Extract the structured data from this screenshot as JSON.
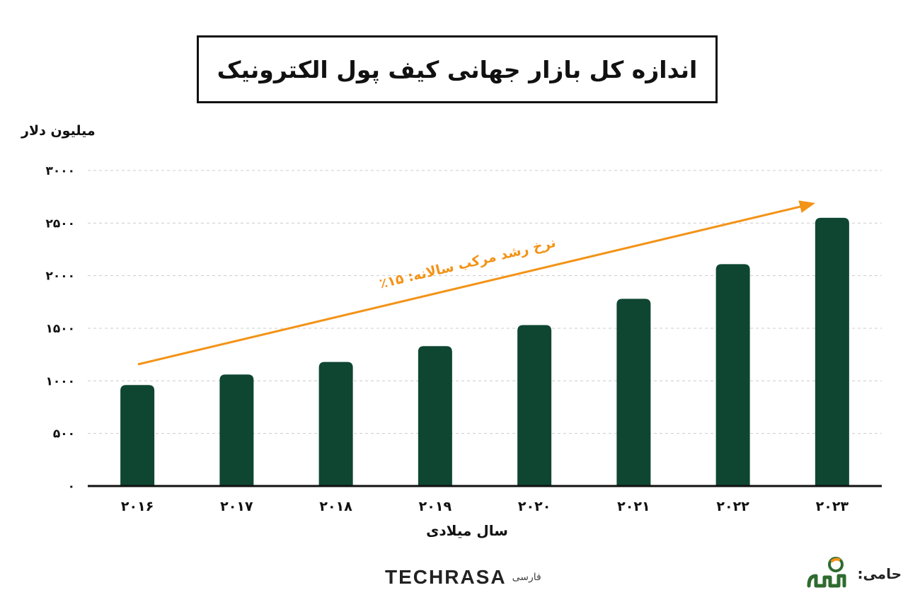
{
  "header": {
    "title": "اندازه کل بازار جهانی کیف پول الکترونیک"
  },
  "chart_data": {
    "type": "bar",
    "ylabel": "میلیون دلار",
    "xlabel": "سال میلادی",
    "categories": [
      "۲۰۱۶",
      "۲۰۱۷",
      "۲۰۱۸",
      "۲۰۱۹",
      "۲۰۲۰",
      "۲۰۲۱",
      "۲۰۲۲",
      "۲۰۲۳"
    ],
    "values": [
      960,
      1060,
      1180,
      1330,
      1530,
      1780,
      2110,
      2550
    ],
    "ylim": [
      0,
      3000
    ],
    "yticks": [
      0,
      500,
      1000,
      1500,
      2000,
      2500,
      3000
    ],
    "ytick_labels": [
      "۰",
      "۵۰۰",
      "۱۰۰۰",
      "۱۵۰۰",
      "۲۰۰۰",
      "۲۵۰۰",
      "۳۰۰۰"
    ],
    "grid": true,
    "bar_color": "#0e4631",
    "annotation": {
      "text": "نرخ رشد مرکب سالانه: ۱۵٪",
      "color": "#f39317"
    }
  },
  "footer": {
    "brand": "TECHRASA",
    "brand_suffix": "فارسی",
    "sponsor_label": "حامی:"
  },
  "colors": {
    "accent": "#f39317",
    "bar": "#0e4631",
    "sponsor_green": "#2f6b2f"
  }
}
